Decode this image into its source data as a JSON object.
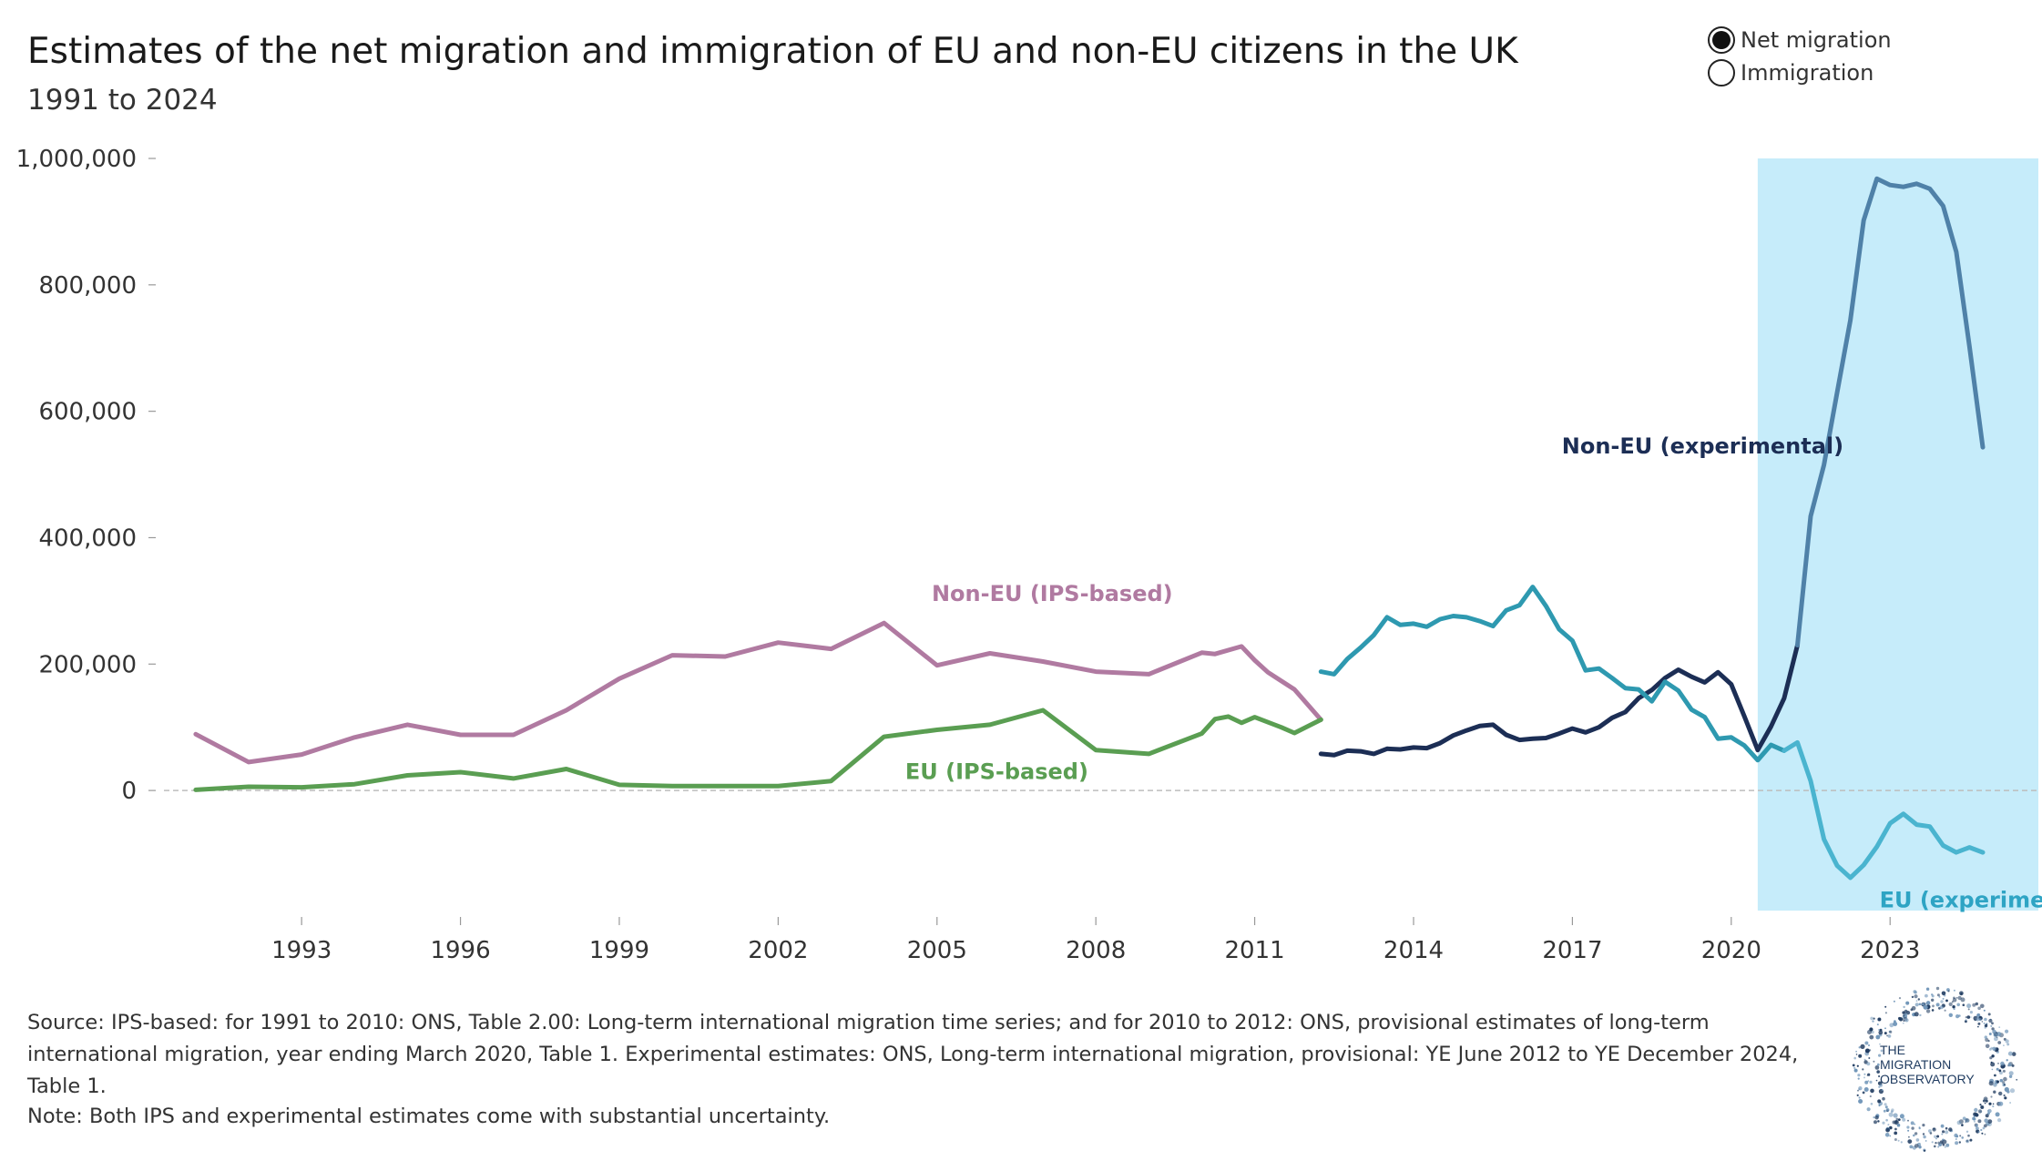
{
  "header": {
    "title": "Estimates of the net migration and immigration of EU and non-EU citizens in the UK",
    "subtitle": "1991 to 2024"
  },
  "legend": {
    "options": [
      {
        "label": "Net migration",
        "selected": true
      },
      {
        "label": "Immigration",
        "selected": false
      }
    ]
  },
  "chart_data": {
    "type": "line",
    "title": "Estimates of the net migration and immigration of EU and non-EU citizens in the UK",
    "subtitle": "1991 to 2024",
    "xlabel": "",
    "ylabel": "",
    "xlim": [
      1990.4,
      2025.8
    ],
    "ylim": [
      -190000,
      1000000
    ],
    "x_ticks": [
      1993,
      1996,
      1999,
      2002,
      2005,
      2008,
      2011,
      2014,
      2017,
      2020,
      2023
    ],
    "y_ticks": [
      0,
      200000,
      400000,
      600000,
      800000,
      1000000
    ],
    "y_tick_labels": [
      "0",
      "200,000",
      "400,000",
      "600,000",
      "800,000",
      "1,000,000"
    ],
    "zero_line": true,
    "grid": false,
    "shaded_region": {
      "x_start": 2020.5,
      "x_end": 2025.8,
      "color": "#c6ecfa"
    },
    "series": [
      {
        "name": "Non-EU (IPS-based)",
        "color": "#b07aa1",
        "label_position": [
          2004.9,
          300000
        ],
        "points": [
          [
            1991,
            89000
          ],
          [
            1992,
            45000
          ],
          [
            1993,
            57000
          ],
          [
            1994,
            84000
          ],
          [
            1995,
            104000
          ],
          [
            1996,
            88000
          ],
          [
            1997,
            88000
          ],
          [
            1998,
            127000
          ],
          [
            1999,
            177000
          ],
          [
            2000,
            214000
          ],
          [
            2001,
            212000
          ],
          [
            2002,
            234000
          ],
          [
            2003,
            224000
          ],
          [
            2004,
            265000
          ],
          [
            2005,
            198000
          ],
          [
            2006,
            217000
          ],
          [
            2007,
            204000
          ],
          [
            2008,
            188000
          ],
          [
            2009,
            184000
          ],
          [
            2010,
            218000
          ],
          [
            2010.25,
            216000
          ],
          [
            2010.75,
            228000
          ],
          [
            2011,
            206000
          ],
          [
            2011.25,
            187000
          ],
          [
            2011.75,
            160000
          ],
          [
            2012.25,
            112000
          ]
        ]
      },
      {
        "name": "EU (IPS-based)",
        "color": "#5a9e52",
        "label_position": [
          2004.4,
          18000
        ],
        "points": [
          [
            1991,
            1000
          ],
          [
            1992,
            6000
          ],
          [
            1993,
            5000
          ],
          [
            1994,
            10000
          ],
          [
            1995,
            24000
          ],
          [
            1996,
            29000
          ],
          [
            1997,
            19000
          ],
          [
            1998,
            34000
          ],
          [
            1999,
            9000
          ],
          [
            2000,
            7000
          ],
          [
            2001,
            7000
          ],
          [
            2002,
            7000
          ],
          [
            2003,
            15000
          ],
          [
            2004,
            85000
          ],
          [
            2005,
            96000
          ],
          [
            2006,
            104000
          ],
          [
            2007,
            127000
          ],
          [
            2008,
            64000
          ],
          [
            2009,
            58000
          ],
          [
            2010,
            90000
          ],
          [
            2010.25,
            113000
          ],
          [
            2010.5,
            117000
          ],
          [
            2010.75,
            107000
          ],
          [
            2011,
            116000
          ],
          [
            2011.5,
            100000
          ],
          [
            2011.75,
            91000
          ],
          [
            2012.25,
            112000
          ]
        ]
      },
      {
        "name": "Non-EU (experimental)",
        "color": "#1c2e55",
        "label_position": [
          2016.8,
          533000
        ],
        "points": [
          [
            2012.25,
            58000
          ],
          [
            2012.5,
            56000
          ],
          [
            2012.75,
            63000
          ],
          [
            2013,
            62000
          ],
          [
            2013.25,
            58000
          ],
          [
            2013.5,
            66000
          ],
          [
            2013.75,
            65000
          ],
          [
            2014,
            68000
          ],
          [
            2014.25,
            67000
          ],
          [
            2014.5,
            75000
          ],
          [
            2014.75,
            87000
          ],
          [
            2015,
            95000
          ],
          [
            2015.25,
            102000
          ],
          [
            2015.5,
            104000
          ],
          [
            2015.75,
            88000
          ],
          [
            2016,
            80000
          ],
          [
            2016.25,
            82000
          ],
          [
            2016.5,
            83000
          ],
          [
            2016.75,
            90000
          ],
          [
            2017,
            98000
          ],
          [
            2017.25,
            92000
          ],
          [
            2017.5,
            100000
          ],
          [
            2017.75,
            115000
          ],
          [
            2018,
            124000
          ],
          [
            2018.25,
            146000
          ],
          [
            2018.5,
            159000
          ],
          [
            2018.75,
            178000
          ],
          [
            2019,
            191000
          ],
          [
            2019.25,
            180000
          ],
          [
            2019.5,
            171000
          ],
          [
            2019.75,
            187000
          ],
          [
            2020,
            168000
          ],
          [
            2020.25,
            117000
          ],
          [
            2020.5,
            64000
          ],
          [
            2020.75,
            101000
          ],
          [
            2021,
            146000
          ],
          [
            2021.25,
            230000
          ]
        ]
      },
      {
        "name": "Non-EU (experimental, shaded)",
        "color": "#4f81a8",
        "points": [
          [
            2021.25,
            230000
          ],
          [
            2021.5,
            434000
          ],
          [
            2021.75,
            515000
          ],
          [
            2022,
            630000
          ],
          [
            2022.25,
            744000
          ],
          [
            2022.5,
            902000
          ],
          [
            2022.75,
            968000
          ],
          [
            2023,
            958000
          ],
          [
            2023.25,
            955000
          ],
          [
            2023.5,
            960000
          ],
          [
            2023.75,
            952000
          ],
          [
            2024,
            925000
          ],
          [
            2024.25,
            852000
          ],
          [
            2024.5,
            702000
          ],
          [
            2024.75,
            543000
          ]
        ]
      },
      {
        "name": "EU (experimental)",
        "color": "#2e99b0",
        "label_position": [
          2022.8,
          -185000
        ],
        "points": [
          [
            2012.25,
            188000
          ],
          [
            2012.5,
            184000
          ],
          [
            2012.75,
            208000
          ],
          [
            2013,
            226000
          ],
          [
            2013.25,
            246000
          ],
          [
            2013.5,
            274000
          ],
          [
            2013.75,
            262000
          ],
          [
            2014,
            264000
          ],
          [
            2014.25,
            259000
          ],
          [
            2014.5,
            271000
          ],
          [
            2014.75,
            276000
          ],
          [
            2015,
            274000
          ],
          [
            2015.25,
            268000
          ],
          [
            2015.5,
            260000
          ],
          [
            2015.75,
            285000
          ],
          [
            2016,
            293000
          ],
          [
            2016.25,
            322000
          ],
          [
            2016.5,
            292000
          ],
          [
            2016.75,
            255000
          ],
          [
            2017,
            237000
          ],
          [
            2017.25,
            190000
          ],
          [
            2017.5,
            193000
          ],
          [
            2017.75,
            178000
          ],
          [
            2018,
            162000
          ],
          [
            2018.25,
            160000
          ],
          [
            2018.5,
            141000
          ],
          [
            2018.75,
            172000
          ],
          [
            2019,
            158000
          ],
          [
            2019.25,
            128000
          ],
          [
            2019.5,
            116000
          ],
          [
            2019.75,
            82000
          ],
          [
            2020,
            84000
          ],
          [
            2020.25,
            71000
          ],
          [
            2020.5,
            48000
          ],
          [
            2020.75,
            72000
          ],
          [
            2021,
            63000
          ]
        ]
      },
      {
        "name": "EU (experimental, shaded)",
        "color": "#4ab4cf",
        "points": [
          [
            2021,
            63000
          ],
          [
            2021.25,
            76000
          ],
          [
            2021.5,
            15000
          ],
          [
            2021.75,
            -77000
          ],
          [
            2022,
            -119000
          ],
          [
            2022.25,
            -138000
          ],
          [
            2022.5,
            -118000
          ],
          [
            2022.75,
            -89000
          ],
          [
            2023,
            -52000
          ],
          [
            2023.25,
            -37000
          ],
          [
            2023.5,
            -54000
          ],
          [
            2023.75,
            -57000
          ],
          [
            2024,
            -87000
          ],
          [
            2024.25,
            -98000
          ],
          [
            2024.5,
            -90000
          ],
          [
            2024.75,
            -98000
          ]
        ]
      }
    ]
  },
  "labels": {
    "non_eu_ips": "Non-EU (IPS-based)",
    "eu_ips": "EU (IPS-based)",
    "non_eu_exp": "Non-EU (experimental)",
    "eu_exp": "EU (experimental)"
  },
  "footer": {
    "source": "Source: IPS-based: for 1991 to 2010: ONS, Table 2.00: Long-term international migration time series; and for 2010 to 2012: ONS, provisional estimates of long-term international migration, year ending March 2020, Table 1. Experimental estimates: ONS, Long-term international migration, provisional: YE June 2012 to YE December 2024, Table 1.",
    "note": "Note: Both IPS and experimental estimates come with substantial uncertainty."
  },
  "logo": {
    "line1": "THE",
    "line2": "MIGRATION",
    "line3": "OBSERVATORY"
  }
}
